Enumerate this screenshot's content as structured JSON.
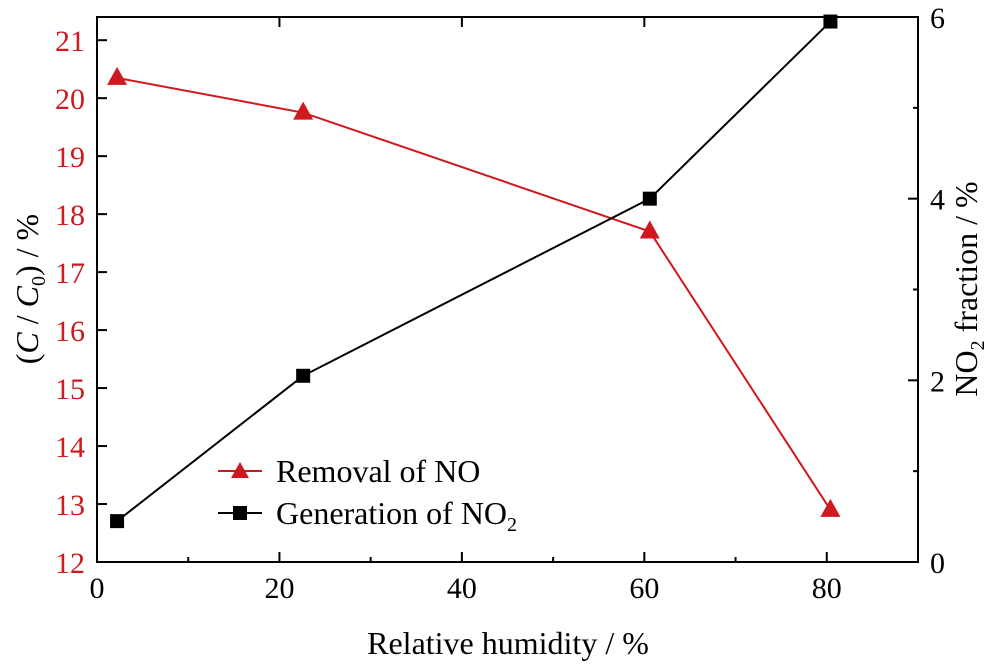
{
  "chart_data": {
    "type": "line",
    "xlabel": "Relative humidity / %",
    "x_ticks": [
      0,
      20,
      40,
      60,
      80
    ],
    "xlim": [
      0,
      90
    ],
    "y_left": {
      "label_prefix": "(",
      "label_C": "C",
      "label_mid": " / ",
      "label_C0": "C",
      "label_sub0": "0",
      "label_suffix": ") / %",
      "lim": [
        12,
        21.4
      ],
      "ticks": [
        12,
        13,
        14,
        15,
        16,
        17,
        18,
        19,
        20,
        21
      ],
      "color": "#d0181f"
    },
    "y_right": {
      "label_pre": "NO",
      "label_sub": "2",
      "label_post": " fraction / %",
      "lim": [
        0,
        6
      ],
      "ticks": [
        0,
        2,
        4,
        6
      ],
      "color": "#000000"
    },
    "series": [
      {
        "name": "Removal of NO",
        "axis": "left",
        "marker": "triangle",
        "color": "#d0181f",
        "x": [
          2.2,
          22.6,
          60.6,
          80.4
        ],
        "y": [
          20.35,
          19.75,
          17.7,
          12.9
        ]
      },
      {
        "name_pre": "Generation of NO",
        "name_sub": "2",
        "axis": "right",
        "marker": "square",
        "color": "#000000",
        "x": [
          2.2,
          22.6,
          60.6,
          80.4
        ],
        "y": [
          0.45,
          2.05,
          4.0,
          5.95
        ]
      }
    ],
    "legend_position": "lower-left"
  }
}
